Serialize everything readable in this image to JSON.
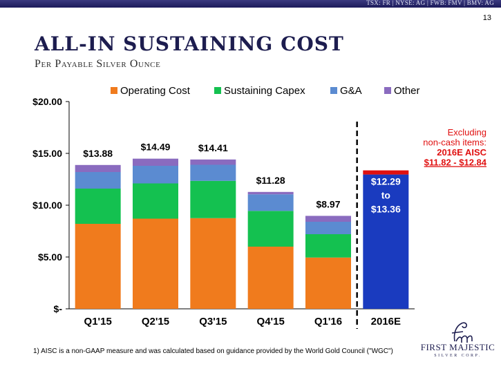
{
  "header": {
    "tickers": "TSX: FR   |   NYSE: AG   |   FWB: FMV   |   BMV: AG",
    "page_number": "13"
  },
  "title": "ALL-IN SUSTAINING COST",
  "subtitle": "Per Payable Silver Ounce",
  "footnote": "1) AISC is a non-GAAP measure and was calculated based on guidance provided by the World Gold Council (\"WGC\")",
  "logo": {
    "name": "FIRST MAJESTIC",
    "sub": "SILVER CORP."
  },
  "colors": {
    "operating": "#f07b1d",
    "capex": "#14c150",
    "ga": "#5b8bd1",
    "other": "#8a6bbf",
    "projection": "#1a3bbf",
    "projection_top": "#e01010",
    "callout_text": "#e01010"
  },
  "chart_data": {
    "type": "bar",
    "stacked": true,
    "categories": [
      "Q1'15",
      "Q2'15",
      "Q3'15",
      "Q4'15",
      "Q1'16",
      "2016E"
    ],
    "series": [
      {
        "name": "Operating Cost",
        "values": [
          8.2,
          8.7,
          8.75,
          6.0,
          4.95,
          null
        ]
      },
      {
        "name": "Sustaining Capex",
        "values": [
          3.4,
          3.4,
          3.6,
          3.45,
          2.25,
          null
        ]
      },
      {
        "name": "G&A",
        "values": [
          1.6,
          1.7,
          1.55,
          1.6,
          1.2,
          null
        ]
      },
      {
        "name": "Other",
        "values": [
          0.68,
          0.69,
          0.51,
          0.23,
          0.57,
          null
        ]
      }
    ],
    "totals": [
      13.88,
      14.49,
      14.41,
      11.28,
      8.97,
      null
    ],
    "total_labels": [
      "$13.88",
      "$14.49",
      "$14.41",
      "$11.28",
      "$8.97",
      ""
    ],
    "projection": {
      "category": "2016E",
      "low": 12.29,
      "high": 13.36,
      "label_lines": [
        "$12.29",
        "to",
        "$13.36"
      ],
      "excl_low": 11.82,
      "excl_high": 12.84
    },
    "callout_lines": [
      "Excluding",
      "non-cash items:",
      "2016E AISC",
      "$11.82 - $12.84"
    ],
    "yticks": [
      0,
      5,
      10,
      15,
      20
    ],
    "ytick_labels": [
      "$-",
      "$5.00",
      "$10.00",
      "$15.00",
      "$20.00"
    ],
    "ylim": [
      0,
      20
    ],
    "legend": [
      "Operating Cost",
      "Sustaining Capex",
      "G&A",
      "Other"
    ],
    "legend_position": "top",
    "grid": false,
    "divider_before": "2016E"
  }
}
